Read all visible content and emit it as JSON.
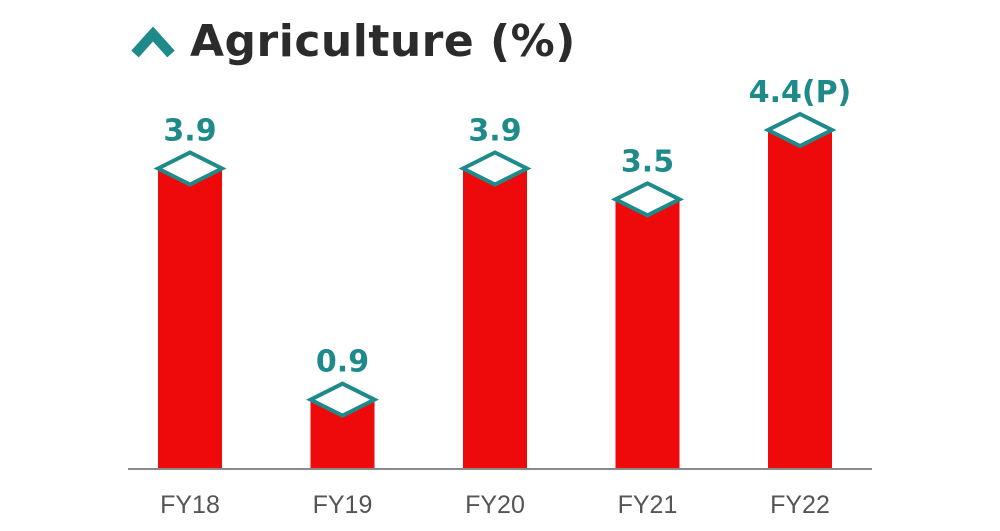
{
  "colors": {
    "bar": "#ee0a0a",
    "accent": "#1e8a8a",
    "cap_fill": "#ffffff",
    "axis": "#8a8a8a",
    "title": "#2b2b2b"
  },
  "header": {
    "icon": "chevron-up-icon",
    "title": "Agriculture (%)"
  },
  "chart_data": {
    "type": "bar",
    "title": "Agriculture (%)",
    "categories": [
      "FY18",
      "FY19",
      "FY20",
      "FY21",
      "FY22"
    ],
    "values": [
      3.9,
      0.9,
      3.9,
      3.5,
      4.4
    ],
    "data_labels": [
      "3.9",
      "0.9",
      "3.9",
      "3.5",
      "4.4(P)"
    ],
    "xlabel": "",
    "ylabel": "",
    "ylim": [
      0,
      4.4
    ],
    "grid": false,
    "legend": "none"
  }
}
